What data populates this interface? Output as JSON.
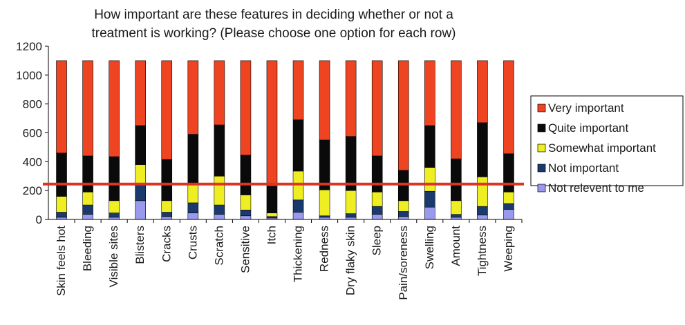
{
  "chart_data": {
    "type": "bar",
    "stacked": true,
    "title": "How important are these features in deciding whether or not a treatment is working? (Please choose one option for each row)",
    "title_lines": [
      "How important are these features in deciding whether or not a",
      "treatment is working? (Please choose one option for each row)"
    ],
    "xlabel": "",
    "ylabel": "",
    "ylim": [
      0,
      1200
    ],
    "yticks": [
      0,
      200,
      400,
      600,
      800,
      1000,
      1200
    ],
    "grid": false,
    "legend_position": "right",
    "categories": [
      "Skin feels hot",
      "Bleeding",
      "Visible sites",
      "Blisters",
      "Cracks",
      "Crusts",
      "Scratch",
      "Sensitive",
      "Itch",
      "Thickening",
      "Redness",
      "Dry flaky skin",
      "Sleep",
      "Pain/soreness",
      "Swelling",
      "Amount",
      "Tightness",
      "Weeping"
    ],
    "series": [
      {
        "name": "Not relevent to me",
        "color": "#9999ee",
        "values": [
          15,
          35,
          15,
          130,
          20,
          45,
          35,
          25,
          10,
          50,
          15,
          15,
          35,
          20,
          85,
          15,
          30,
          70
        ]
      },
      {
        "name": "Not important",
        "color": "#1a3a6e",
        "values": [
          35,
          65,
          30,
          110,
          30,
          70,
          65,
          40,
          10,
          85,
          10,
          25,
          55,
          35,
          110,
          20,
          60,
          40
        ]
      },
      {
        "name": "Somewhat important",
        "color": "#eeee22",
        "values": [
          110,
          90,
          85,
          140,
          80,
          140,
          200,
          105,
          25,
          200,
          180,
          160,
          100,
          75,
          165,
          95,
          205,
          80
        ]
      },
      {
        "name": "Quite important",
        "color": "#0a0a0a",
        "values": [
          300,
          250,
          305,
          270,
          285,
          335,
          355,
          275,
          185,
          355,
          345,
          375,
          250,
          210,
          290,
          290,
          375,
          265
        ]
      },
      {
        "name": "Very important",
        "color": "#ee4422",
        "values": [
          640,
          660,
          665,
          450,
          685,
          510,
          445,
          655,
          870,
          410,
          550,
          525,
          660,
          760,
          450,
          680,
          430,
          645
        ]
      }
    ],
    "reference_line": {
      "value": 245,
      "color": "#dd3322"
    }
  }
}
